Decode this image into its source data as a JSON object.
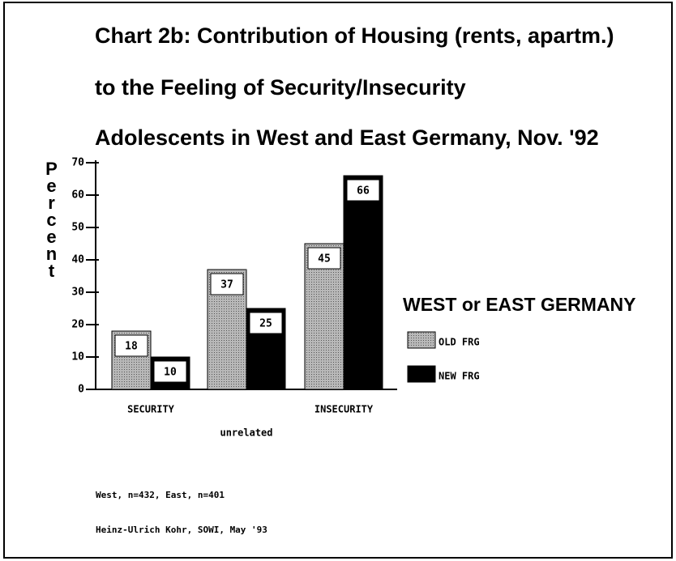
{
  "chart_data": {
    "type": "bar",
    "title": [
      "Chart 2b: Contribution of Housing (rents, apartm.)",
      "to the Feeling of Security/Insecurity",
      "Adolescents in West and East Germany, Nov. '92"
    ],
    "ylabel": "Percent",
    "categories": [
      "SECURITY",
      "unrelated",
      "INSECURITY"
    ],
    "series": [
      {
        "name": "OLD FRG",
        "color": "#b8b8b8",
        "values": [
          18,
          37,
          45
        ]
      },
      {
        "name": "NEW FRG",
        "color": "#000000",
        "values": [
          10,
          25,
          66
        ]
      }
    ],
    "legend_title": "WEST or EAST GERMANY",
    "legend": "right",
    "ylim": [
      0,
      70
    ],
    "yticks": [
      0,
      10,
      20,
      30,
      40,
      50,
      60,
      70
    ],
    "grid": false,
    "notes": [
      "West, n=432, East, n=401",
      "Heinz-Ulrich Kohr, SOWI, May '93"
    ]
  }
}
